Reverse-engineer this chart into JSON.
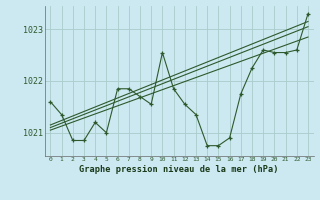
{
  "title": "Graphe pression niveau de la mer (hPa)",
  "bg_color": "#cce8f0",
  "grid_color": "#aacccc",
  "line_color": "#2d5a2d",
  "xlim": [
    -0.5,
    23.5
  ],
  "ylim": [
    1020.55,
    1023.45
  ],
  "yticks": [
    1021,
    1022,
    1023
  ],
  "xticks": [
    0,
    1,
    2,
    3,
    4,
    5,
    6,
    7,
    8,
    9,
    10,
    11,
    12,
    13,
    14,
    15,
    16,
    17,
    18,
    19,
    20,
    21,
    22,
    23
  ],
  "main_x": [
    0,
    1,
    2,
    3,
    4,
    5,
    6,
    7,
    8,
    9,
    10,
    11,
    12,
    13,
    14,
    15,
    16,
    17,
    18,
    19,
    20,
    21,
    22,
    23
  ],
  "main_y": [
    1021.6,
    1021.35,
    1020.85,
    1020.85,
    1021.2,
    1021.0,
    1021.85,
    1021.85,
    1021.7,
    1021.55,
    1022.55,
    1021.85,
    1021.55,
    1021.35,
    1020.75,
    1020.75,
    1020.9,
    1021.75,
    1022.25,
    1022.6,
    1022.55,
    1022.55,
    1022.6,
    1023.3
  ],
  "trend1_x": [
    0,
    23
  ],
  "trend1_y": [
    1021.05,
    1022.85
  ],
  "trend2_x": [
    0,
    23
  ],
  "trend2_y": [
    1021.1,
    1023.05
  ],
  "trend3_x": [
    0,
    23
  ],
  "trend3_y": [
    1021.15,
    1023.15
  ]
}
